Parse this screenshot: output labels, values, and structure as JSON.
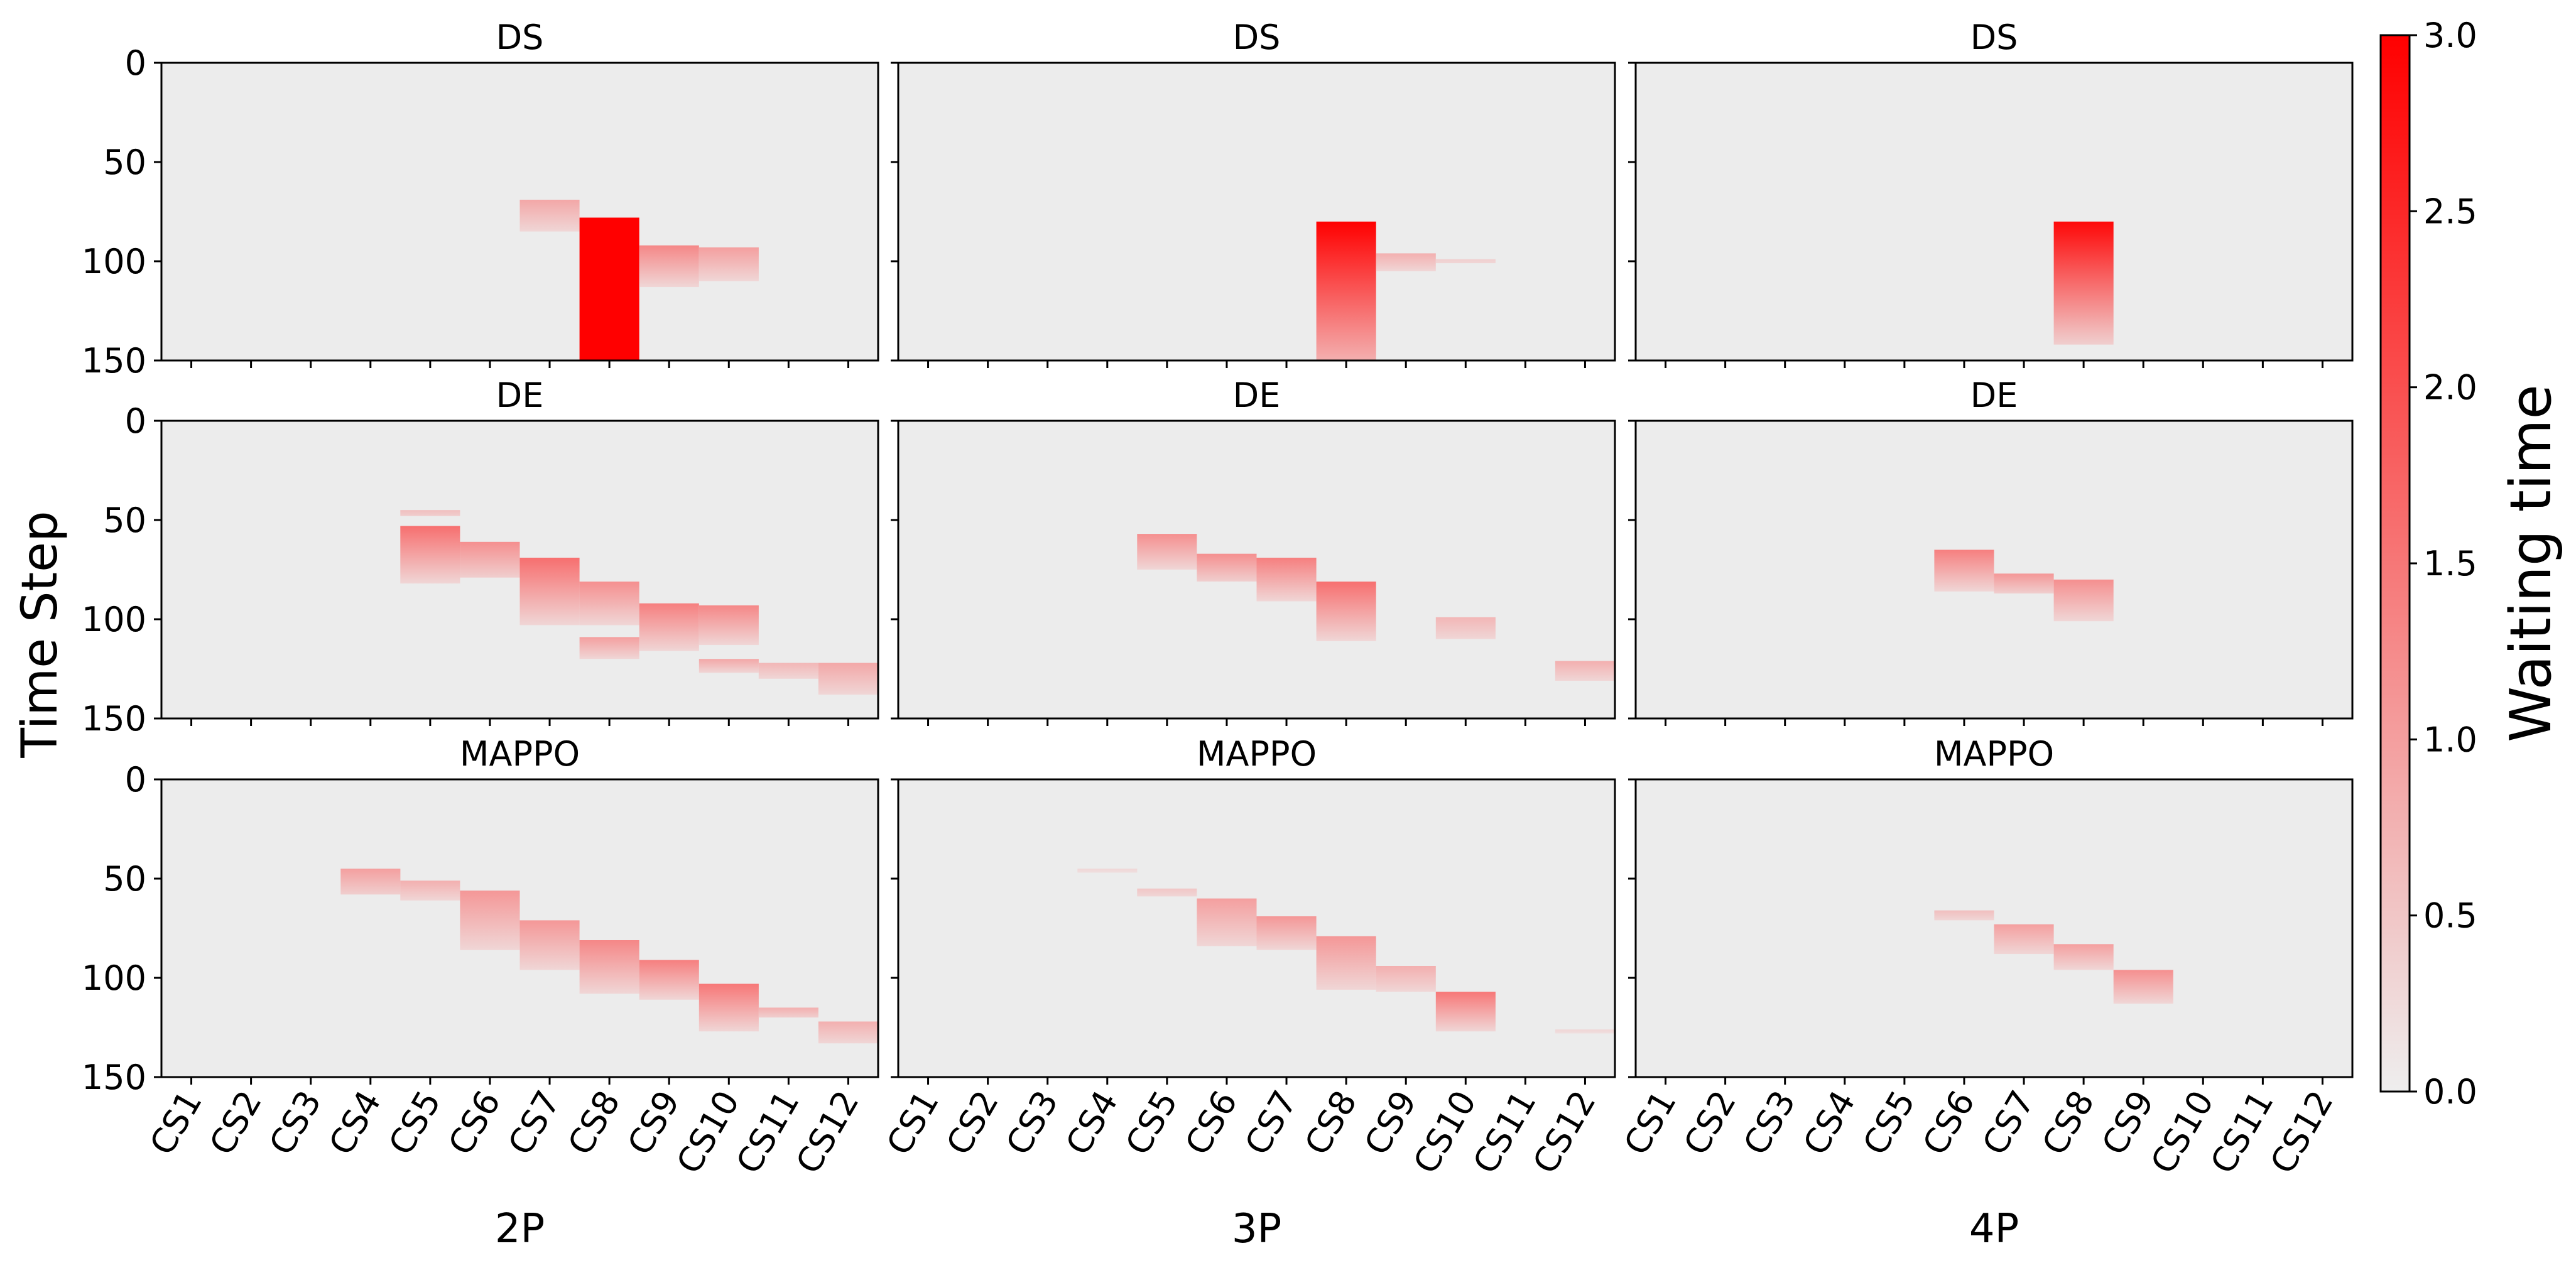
{
  "chart_data": {
    "type": "heatmap",
    "ylabel": "Time Step",
    "colorbar": {
      "label": "Waiting time",
      "range": [
        0,
        3.0
      ],
      "ticks": [
        "0.0",
        "0.5",
        "1.0",
        "1.5",
        "2.0",
        "2.5",
        "3.0"
      ],
      "color_low": "#eeeeee",
      "color_high": "#ff0000"
    },
    "categories": [
      "CS1",
      "CS2",
      "CS3",
      "CS4",
      "CS5",
      "CS6",
      "CS7",
      "CS8",
      "CS9",
      "CS10",
      "CS11",
      "CS12"
    ],
    "y_ticks": [
      "0",
      "50",
      "100",
      "150"
    ],
    "ylim": [
      150,
      0
    ],
    "background_color": "#ececec",
    "columns": [
      "2P",
      "3P",
      "4P"
    ],
    "rows": [
      "DS",
      "DE",
      "MAPPO"
    ],
    "panels": [
      {
        "row": "DS",
        "column": "2P",
        "title": "DS",
        "cells": [
          {
            "station": "CS7",
            "start": 69,
            "end": 85,
            "v0": 0.9,
            "v1": 0.3
          },
          {
            "station": "CS8",
            "start": 78,
            "end": 150,
            "v0": 3.0,
            "v1": 3.0
          },
          {
            "station": "CS9",
            "start": 92,
            "end": 113,
            "v0": 1.3,
            "v1": 0.3
          },
          {
            "station": "CS10",
            "start": 93,
            "end": 110,
            "v0": 1.0,
            "v1": 0.3
          }
        ]
      },
      {
        "row": "DS",
        "column": "3P",
        "title": "DS",
        "cells": [
          {
            "station": "CS8",
            "start": 80,
            "end": 150,
            "v0": 3.0,
            "v1": 0.8
          },
          {
            "station": "CS9",
            "start": 96,
            "end": 105,
            "v0": 0.8,
            "v1": 0.3
          },
          {
            "station": "CS10",
            "start": 99,
            "end": 101,
            "v0": 0.4,
            "v1": 0.3
          }
        ]
      },
      {
        "row": "DS",
        "column": "4P",
        "title": "DS",
        "cells": [
          {
            "station": "CS8",
            "start": 80,
            "end": 142,
            "v0": 2.9,
            "v1": 0.4
          }
        ]
      },
      {
        "row": "DE",
        "column": "2P",
        "title": "DE",
        "cells": [
          {
            "station": "CS5",
            "start": 45,
            "end": 48,
            "v0": 0.6,
            "v1": 0.4
          },
          {
            "station": "CS5",
            "start": 53,
            "end": 82,
            "v0": 1.6,
            "v1": 0.3
          },
          {
            "station": "CS6",
            "start": 61,
            "end": 79,
            "v0": 1.2,
            "v1": 0.4
          },
          {
            "station": "CS7",
            "start": 69,
            "end": 103,
            "v0": 1.6,
            "v1": 0.3
          },
          {
            "station": "CS8",
            "start": 81,
            "end": 103,
            "v0": 1.2,
            "v1": 0.3
          },
          {
            "station": "CS8",
            "start": 109,
            "end": 120,
            "v0": 1.0,
            "v1": 0.3
          },
          {
            "station": "CS9",
            "start": 92,
            "end": 116,
            "v0": 1.4,
            "v1": 0.3
          },
          {
            "station": "CS10",
            "start": 93,
            "end": 113,
            "v0": 1.3,
            "v1": 0.3
          },
          {
            "station": "CS10",
            "start": 120,
            "end": 127,
            "v0": 0.9,
            "v1": 0.3
          },
          {
            "station": "CS11",
            "start": 122,
            "end": 130,
            "v0": 0.7,
            "v1": 0.3
          },
          {
            "station": "CS12",
            "start": 122,
            "end": 138,
            "v0": 0.9,
            "v1": 0.3
          }
        ]
      },
      {
        "row": "DE",
        "column": "3P",
        "title": "DE",
        "cells": [
          {
            "station": "CS5",
            "start": 57,
            "end": 75,
            "v0": 1.2,
            "v1": 0.3
          },
          {
            "station": "CS6",
            "start": 67,
            "end": 81,
            "v0": 1.2,
            "v1": 0.4
          },
          {
            "station": "CS7",
            "start": 69,
            "end": 91,
            "v0": 1.4,
            "v1": 0.3
          },
          {
            "station": "CS8",
            "start": 81,
            "end": 111,
            "v0": 1.6,
            "v1": 0.3
          },
          {
            "station": "CS10",
            "start": 99,
            "end": 110,
            "v0": 0.7,
            "v1": 0.3
          },
          {
            "station": "CS12",
            "start": 121,
            "end": 131,
            "v0": 0.8,
            "v1": 0.3
          }
        ]
      },
      {
        "row": "DE",
        "column": "4P",
        "title": "DE",
        "cells": [
          {
            "station": "CS6",
            "start": 65,
            "end": 86,
            "v0": 1.4,
            "v1": 0.3
          },
          {
            "station": "CS7",
            "start": 77,
            "end": 87,
            "v0": 1.1,
            "v1": 0.4
          },
          {
            "station": "CS8",
            "start": 80,
            "end": 101,
            "v0": 1.2,
            "v1": 0.3
          }
        ]
      },
      {
        "row": "MAPPO",
        "column": "2P",
        "title": "MAPPO",
        "cells": [
          {
            "station": "CS4",
            "start": 45,
            "end": 58,
            "v0": 1.0,
            "v1": 0.4
          },
          {
            "station": "CS5",
            "start": 51,
            "end": 61,
            "v0": 0.8,
            "v1": 0.3
          },
          {
            "station": "CS6",
            "start": 56,
            "end": 86,
            "v0": 1.1,
            "v1": 0.3
          },
          {
            "station": "CS7",
            "start": 71,
            "end": 96,
            "v0": 1.1,
            "v1": 0.3
          },
          {
            "station": "CS8",
            "start": 81,
            "end": 108,
            "v0": 1.3,
            "v1": 0.3
          },
          {
            "station": "CS9",
            "start": 91,
            "end": 111,
            "v0": 1.4,
            "v1": 0.3
          },
          {
            "station": "CS10",
            "start": 103,
            "end": 127,
            "v0": 1.5,
            "v1": 0.3
          },
          {
            "station": "CS11",
            "start": 115,
            "end": 120,
            "v0": 0.8,
            "v1": 0.4
          },
          {
            "station": "CS12",
            "start": 122,
            "end": 133,
            "v0": 0.8,
            "v1": 0.3
          }
        ]
      },
      {
        "row": "MAPPO",
        "column": "3P",
        "title": "MAPPO",
        "cells": [
          {
            "station": "CS4",
            "start": 45,
            "end": 47,
            "v0": 0.3,
            "v1": 0.2
          },
          {
            "station": "CS5",
            "start": 55,
            "end": 59,
            "v0": 0.5,
            "v1": 0.3
          },
          {
            "station": "CS6",
            "start": 60,
            "end": 84,
            "v0": 1.0,
            "v1": 0.3
          },
          {
            "station": "CS7",
            "start": 69,
            "end": 86,
            "v0": 1.1,
            "v1": 0.3
          },
          {
            "station": "CS8",
            "start": 79,
            "end": 106,
            "v0": 1.1,
            "v1": 0.3
          },
          {
            "station": "CS9",
            "start": 94,
            "end": 107,
            "v0": 0.8,
            "v1": 0.3
          },
          {
            "station": "CS10",
            "start": 107,
            "end": 127,
            "v0": 1.5,
            "v1": 0.3
          },
          {
            "station": "CS12",
            "start": 126,
            "end": 128,
            "v0": 0.3,
            "v1": 0.2
          }
        ]
      },
      {
        "row": "MAPPO",
        "column": "4P",
        "title": "MAPPO",
        "cells": [
          {
            "station": "CS6",
            "start": 66,
            "end": 71,
            "v0": 0.6,
            "v1": 0.3
          },
          {
            "station": "CS7",
            "start": 73,
            "end": 88,
            "v0": 1.0,
            "v1": 0.3
          },
          {
            "station": "CS8",
            "start": 83,
            "end": 96,
            "v0": 1.0,
            "v1": 0.3
          },
          {
            "station": "CS9",
            "start": 96,
            "end": 113,
            "v0": 1.2,
            "v1": 0.3
          }
        ]
      }
    ]
  }
}
